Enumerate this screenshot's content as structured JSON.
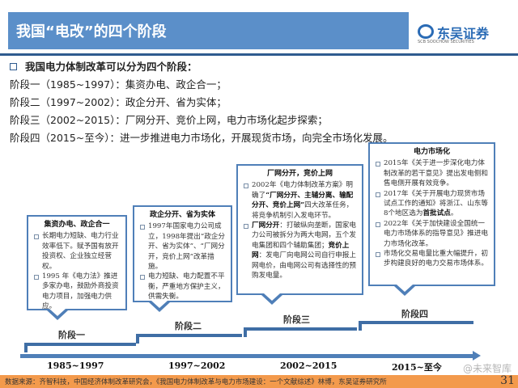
{
  "header": {
    "title": "我国“电改”的四个阶段",
    "logo_text": "东吴证券",
    "logo_sub": "SCB SOOCHOW SECURITIES"
  },
  "intro": "我国电力体制改革可以分为四个阶段：",
  "stages": [
    "阶段一（1985~1997）：集资办电、政企合一；",
    "阶段二（1997~2002）：政企分开、省为实体；",
    "阶段三（2002~2015）：厂网分开、竞价上网，电力市场化起步探索；",
    "阶段四（2015~至今）：进一步推进电力市场化，开展现货市场，向完全市场化发展。"
  ],
  "boxes": [
    {
      "title": "集资办电、政企合一",
      "items": [
        "长期电力短缺、电力行业效率低下。赋予国有放开投资权、企业独立经营权。",
        "1995 年《电力法》推进多家办电，鼓励外商投资电力项目，加强电力供应。"
      ]
    },
    {
      "title": "政企分开、省为实体",
      "items": [
        "1997年国家电力公司成立，1998年提出“政企分开、省为实体”、“厂网分开，竞价上网”改革措施。",
        "电力短缺、电力配置不平衡，严重地方保护主义，供需失衡。"
      ]
    },
    {
      "title": "厂网分开，竞价上网",
      "items": [
        {
          "pre": "2002年《电力体制改革方案》明确了",
          "bold": "“厂网分开、主辅分离、输配分开、竞价上网”",
          "post": "四大改革任务，将竞争机制引入发电环节。"
        },
        {
          "b1": "厂网分开",
          "t1": "：打破纵向垄断，国家电力公司被拆分为两大电网，五个发电集团和四个辅助集团；",
          "b2": "竞价上网",
          "t2": "：发电厂向电网公司自行申报上网电价，由电网公司有选择性的预购发电量。"
        }
      ]
    },
    {
      "title": "电力市场化",
      "items": [
        "2015年《关于进一步深化电力体制改革的若干意见》提出发电侧和售电侧开展有效竞争。",
        {
          "pre": "2017年《关于开展电力现货市场试点工作的通知》将浙江、山东等8个地区选为",
          "bold": "首批试点",
          "post": "。"
        },
        "2022年《关于加快建设全国统一电力市场体系的指导意见》推进电力市场化改革。",
        "市场化交易电量比重大幅提升，初步构建良好的电力交易市场体系。"
      ]
    }
  ],
  "timeline": {
    "labels": [
      "阶段一",
      "阶段二",
      "阶段三",
      "阶段四"
    ],
    "years": [
      "1985~1997",
      "1997~2002",
      "2002~2015",
      "2015~至今"
    ]
  },
  "watermark": "@未来智库",
  "footer": {
    "source": "数据来源：齐智科技，中国经济体制改革研究会，《我国电力体制改革与电力市场建设：一个文献综述》林博，东吴证券研究所",
    "page": "31"
  },
  "colors": {
    "header": "#5b8fc9",
    "rule": "#2f5b8f",
    "box_border": "#4f7fb8",
    "footer": "#f39a4c"
  }
}
